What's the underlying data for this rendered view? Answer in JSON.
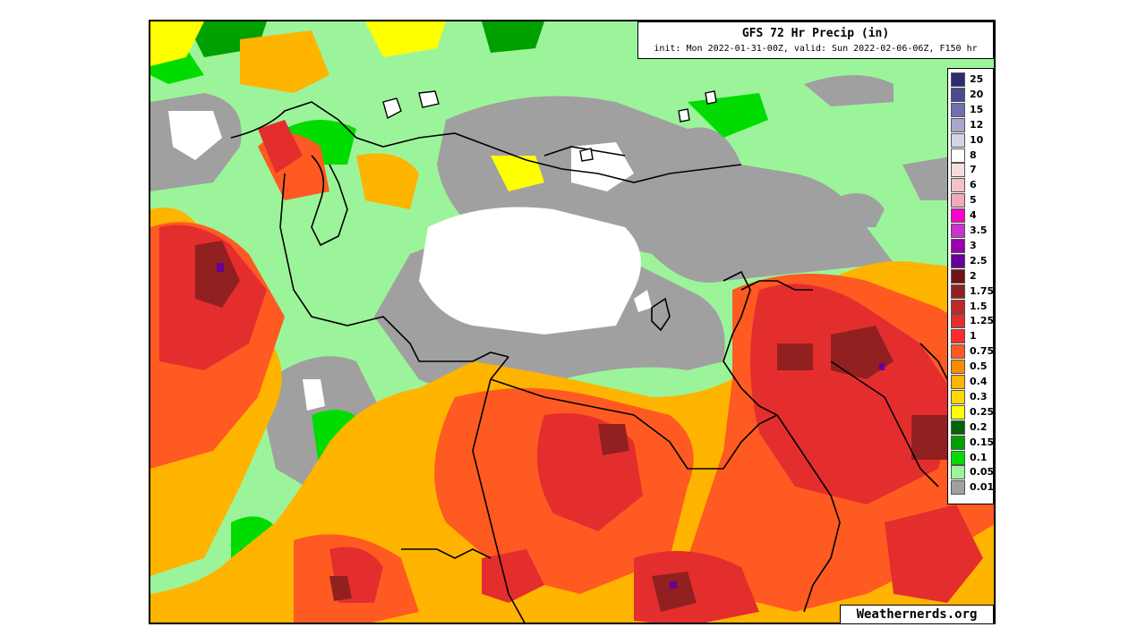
{
  "header": {
    "title": "GFS 72 Hr Precip (in)",
    "subtitle": "init: Mon 2022-01-31-00Z, valid: Sun 2022-02-06-06Z, F150 hr"
  },
  "legend": {
    "items": [
      {
        "label": "25",
        "color": "#2c2c6e"
      },
      {
        "label": "20",
        "color": "#4a4a90"
      },
      {
        "label": "15",
        "color": "#7070b0"
      },
      {
        "label": "12",
        "color": "#a8a8cc"
      },
      {
        "label": "10",
        "color": "#d4d4e4"
      },
      {
        "label": "8",
        "color": "#ffffff"
      },
      {
        "label": "7",
        "color": "#f6dede"
      },
      {
        "label": "6",
        "color": "#f2c2c8"
      },
      {
        "label": "5",
        "color": "#f4a8b8"
      },
      {
        "label": "4",
        "color": "#ff00cc"
      },
      {
        "label": "3.5",
        "color": "#cc33cc"
      },
      {
        "label": "3",
        "color": "#9900aa"
      },
      {
        "label": "2.5",
        "color": "#660099"
      },
      {
        "label": "2",
        "color": "#6e1414"
      },
      {
        "label": "1.75",
        "color": "#922020"
      },
      {
        "label": "1.5",
        "color": "#c02828"
      },
      {
        "label": "1.25",
        "color": "#e42e2e"
      },
      {
        "label": "1",
        "color": "#ff2a2a"
      },
      {
        "label": "0.75",
        "color": "#ff5a22"
      },
      {
        "label": "0.5",
        "color": "#ff8a00"
      },
      {
        "label": "0.4",
        "color": "#ffb400"
      },
      {
        "label": "0.3",
        "color": "#ffd800"
      },
      {
        "label": "0.25",
        "color": "#ffff00"
      },
      {
        "label": "0.2",
        "color": "#006400"
      },
      {
        "label": "0.15",
        "color": "#00a000"
      },
      {
        "label": "0.1",
        "color": "#00dc00"
      },
      {
        "label": "0.05",
        "color": "#9cf49a"
      },
      {
        "label": "0.01",
        "color": "#a0a0a0"
      }
    ]
  },
  "credit": "Weathernerds.org"
}
